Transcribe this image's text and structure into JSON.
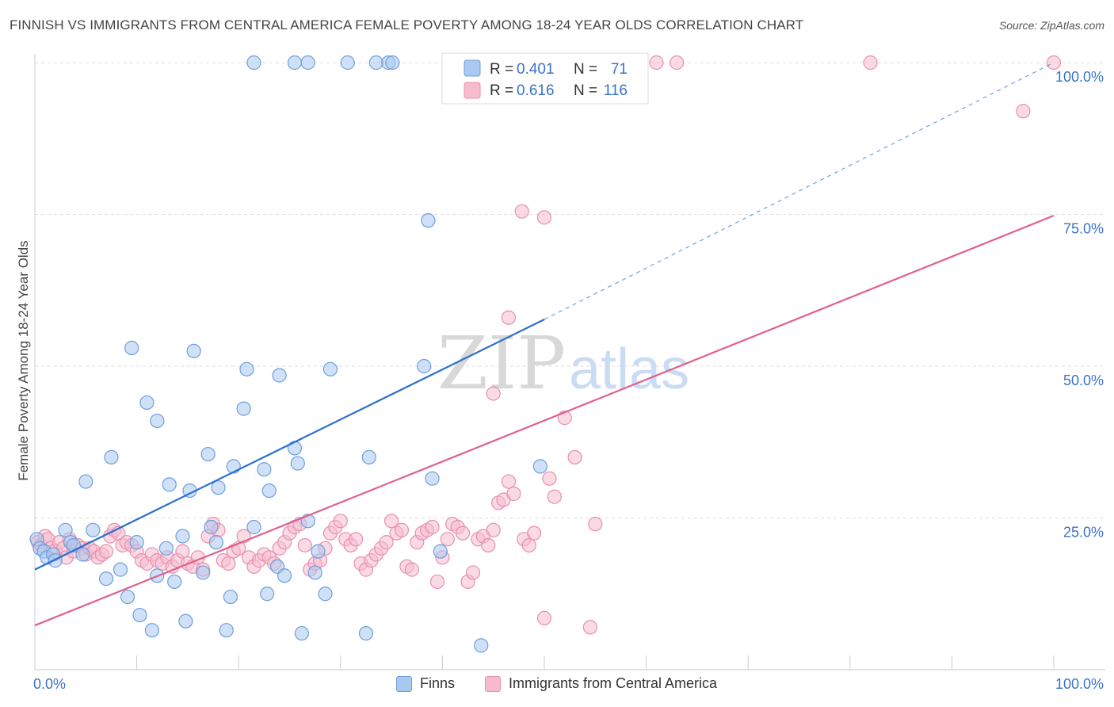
{
  "title": "FINNISH VS IMMIGRANTS FROM CENTRAL AMERICA FEMALE POVERTY AMONG 18-24 YEAR OLDS CORRELATION CHART",
  "source": "Source: ZipAtlas.com",
  "watermark": {
    "zip": "ZIP",
    "atlas": "atlas"
  },
  "legend_top": {
    "r_label": "R =",
    "n_label": "N =",
    "rows": [
      {
        "r": "0.401",
        "n": "71"
      },
      {
        "r": "0.616",
        "n": "116"
      }
    ]
  },
  "colors": {
    "finns_fill": "#a9c9f0",
    "finns_stroke": "#6d9fdc",
    "finns_line": "#2a6fcf",
    "cam_fill": "#f6bccd",
    "cam_stroke": "#e890ac",
    "cam_line": "#e0608c",
    "value_text": "#3a72c8",
    "grid": "#dddddd",
    "axis": "#cccccc"
  },
  "chart_data": {
    "type": "scatter",
    "title": "FINNISH VS IMMIGRANTS FROM CENTRAL AMERICA FEMALE POVERTY AMONG 18-24 YEAR OLDS CORRELATION CHART",
    "xlabel": "",
    "ylabel": "Female Poverty Among 18-24 Year Olds",
    "xlim": [
      0,
      100
    ],
    "ylim": [
      0,
      100
    ],
    "x_tick_labels": [
      "0.0%",
      "100.0%"
    ],
    "y_ticks": [
      25,
      50,
      75,
      100
    ],
    "y_tick_labels": [
      "25.0%",
      "50.0%",
      "75.0%",
      "100.0%"
    ],
    "grid": true,
    "legend_position": "top-center",
    "series": [
      {
        "name": "Finns",
        "r": 0.401,
        "n": 71,
        "trend": {
          "x0": 0,
          "y0": 16.5,
          "x1": 50,
          "y1": 57.7,
          "dashed_to_x": 100,
          "dashed_to_y": 100
        },
        "points": [
          [
            0.2,
            21.5
          ],
          [
            0.5,
            20.0
          ],
          [
            0.9,
            19.5
          ],
          [
            1.2,
            18.5
          ],
          [
            1.8,
            19.0
          ],
          [
            2.0,
            18.0
          ],
          [
            3.0,
            23.0
          ],
          [
            3.5,
            21.0
          ],
          [
            3.8,
            20.5
          ],
          [
            4.7,
            19.0
          ],
          [
            5.0,
            31.0
          ],
          [
            5.7,
            23.0
          ],
          [
            7.0,
            15.0
          ],
          [
            7.5,
            35.0
          ],
          [
            8.4,
            16.5
          ],
          [
            9.1,
            12.0
          ],
          [
            9.5,
            53.0
          ],
          [
            10.0,
            21.0
          ],
          [
            10.3,
            9.0
          ],
          [
            11.0,
            44.0
          ],
          [
            11.5,
            6.5
          ],
          [
            12.0,
            41.0
          ],
          [
            12.0,
            15.5
          ],
          [
            12.9,
            20.0
          ],
          [
            13.2,
            30.5
          ],
          [
            13.7,
            14.5
          ],
          [
            14.5,
            22.0
          ],
          [
            14.8,
            8.0
          ],
          [
            15.2,
            29.5
          ],
          [
            15.6,
            52.5
          ],
          [
            16.5,
            16.0
          ],
          [
            17.0,
            35.5
          ],
          [
            17.3,
            23.5
          ],
          [
            17.8,
            21.0
          ],
          [
            18.0,
            30.0
          ],
          [
            18.8,
            6.5
          ],
          [
            19.2,
            12.0
          ],
          [
            19.5,
            33.5
          ],
          [
            20.5,
            43.0
          ],
          [
            20.8,
            49.5
          ],
          [
            21.5,
            23.5
          ],
          [
            22.5,
            33.0
          ],
          [
            22.8,
            12.5
          ],
          [
            23.0,
            29.5
          ],
          [
            23.8,
            17.0
          ],
          [
            24.0,
            48.5
          ],
          [
            24.5,
            15.5
          ],
          [
            25.5,
            36.5
          ],
          [
            25.8,
            34.0
          ],
          [
            26.2,
            6.0
          ],
          [
            26.8,
            24.5
          ],
          [
            27.5,
            16.0
          ],
          [
            27.8,
            19.5
          ],
          [
            28.5,
            12.5
          ],
          [
            29.0,
            49.5
          ],
          [
            32.5,
            6.0
          ],
          [
            32.8,
            35.0
          ],
          [
            33.5,
            100
          ],
          [
            34.7,
            100
          ],
          [
            35.1,
            100
          ],
          [
            38.2,
            50.0
          ],
          [
            38.6,
            74.0
          ],
          [
            39.0,
            31.5
          ],
          [
            39.8,
            19.5
          ],
          [
            43.8,
            4.0
          ],
          [
            25.5,
            100
          ],
          [
            26.8,
            100
          ],
          [
            21.5,
            100
          ],
          [
            30.7,
            100
          ],
          [
            47.1,
            100
          ],
          [
            49.6,
            33.5
          ]
        ]
      },
      {
        "name": "Immigrants from Central America",
        "r": 0.616,
        "n": 116,
        "trend": {
          "x0": 0,
          "y0": 7.3,
          "x1": 100,
          "y1": 74.8
        },
        "points": [
          [
            0.3,
            21.0
          ],
          [
            0.6,
            20.5
          ],
          [
            1.0,
            22.0
          ],
          [
            1.3,
            21.5
          ],
          [
            1.6,
            20.0
          ],
          [
            2.0,
            19.5
          ],
          [
            2.4,
            21.0
          ],
          [
            2.8,
            20.0
          ],
          [
            3.1,
            18.5
          ],
          [
            3.4,
            21.5
          ],
          [
            3.8,
            19.5
          ],
          [
            4.2,
            20.5
          ],
          [
            4.7,
            20.0
          ],
          [
            5.0,
            19.0
          ],
          [
            5.4,
            20.0
          ],
          [
            5.8,
            19.5
          ],
          [
            6.2,
            18.5
          ],
          [
            6.6,
            19.0
          ],
          [
            7.0,
            19.5
          ],
          [
            7.4,
            22.0
          ],
          [
            7.8,
            23.0
          ],
          [
            8.2,
            22.5
          ],
          [
            8.6,
            20.5
          ],
          [
            9.0,
            21.0
          ],
          [
            9.5,
            20.5
          ],
          [
            10.0,
            19.5
          ],
          [
            10.5,
            18.0
          ],
          [
            11.0,
            17.5
          ],
          [
            11.5,
            19.0
          ],
          [
            12.0,
            18.0
          ],
          [
            12.5,
            17.5
          ],
          [
            13.0,
            18.5
          ],
          [
            13.5,
            17.0
          ],
          [
            14.0,
            18.0
          ],
          [
            14.5,
            19.5
          ],
          [
            15.0,
            17.5
          ],
          [
            15.5,
            17.0
          ],
          [
            16.0,
            18.5
          ],
          [
            16.5,
            16.5
          ],
          [
            17.0,
            22.0
          ],
          [
            17.5,
            24.0
          ],
          [
            18.0,
            23.0
          ],
          [
            18.5,
            18.0
          ],
          [
            19.0,
            17.5
          ],
          [
            19.5,
            19.5
          ],
          [
            20.0,
            20.0
          ],
          [
            20.5,
            22.0
          ],
          [
            21.0,
            18.5
          ],
          [
            21.5,
            17.0
          ],
          [
            22.0,
            18.0
          ],
          [
            22.5,
            19.0
          ],
          [
            23.0,
            18.5
          ],
          [
            23.5,
            17.5
          ],
          [
            24.0,
            20.0
          ],
          [
            24.5,
            21.0
          ],
          [
            25.0,
            22.5
          ],
          [
            25.5,
            23.5
          ],
          [
            26.0,
            24.0
          ],
          [
            26.5,
            20.5
          ],
          [
            27.0,
            16.5
          ],
          [
            27.5,
            17.5
          ],
          [
            28.0,
            18.0
          ],
          [
            28.5,
            20.0
          ],
          [
            29.0,
            22.5
          ],
          [
            29.5,
            23.5
          ],
          [
            30.0,
            24.5
          ],
          [
            30.5,
            21.5
          ],
          [
            31.0,
            20.5
          ],
          [
            31.5,
            21.5
          ],
          [
            32.0,
            17.5
          ],
          [
            32.5,
            16.5
          ],
          [
            33.0,
            18.0
          ],
          [
            33.5,
            19.0
          ],
          [
            34.0,
            20.0
          ],
          [
            34.5,
            21.0
          ],
          [
            35.0,
            24.5
          ],
          [
            35.5,
            22.5
          ],
          [
            36.0,
            23.0
          ],
          [
            36.5,
            17.0
          ],
          [
            37.0,
            16.5
          ],
          [
            37.5,
            21.0
          ],
          [
            38.0,
            22.5
          ],
          [
            38.5,
            23.0
          ],
          [
            39.0,
            23.5
          ],
          [
            39.5,
            14.5
          ],
          [
            40.0,
            18.5
          ],
          [
            40.5,
            21.5
          ],
          [
            41.0,
            24.0
          ],
          [
            41.5,
            23.5
          ],
          [
            42.0,
            22.5
          ],
          [
            42.5,
            14.5
          ],
          [
            43.0,
            16.0
          ],
          [
            43.5,
            21.5
          ],
          [
            44.0,
            22.0
          ],
          [
            44.5,
            20.5
          ],
          [
            45.0,
            23.0
          ],
          [
            45.5,
            27.5
          ],
          [
            46.0,
            28.0
          ],
          [
            46.5,
            31.0
          ],
          [
            47.0,
            29.0
          ],
          [
            48.0,
            21.5
          ],
          [
            48.5,
            20.5
          ],
          [
            49.0,
            22.5
          ],
          [
            50.0,
            8.5
          ],
          [
            50.5,
            31.5
          ],
          [
            51.0,
            28.5
          ],
          [
            52.0,
            41.5
          ],
          [
            53.0,
            35.0
          ],
          [
            54.5,
            7.0
          ],
          [
            55.0,
            24.0
          ],
          [
            45.0,
            45.5
          ],
          [
            46.5,
            58.0
          ],
          [
            47.8,
            75.5
          ],
          [
            50.0,
            74.5
          ],
          [
            97.0,
            92.0
          ],
          [
            100,
            100
          ],
          [
            82.0,
            100
          ],
          [
            63.0,
            100
          ],
          [
            61.0,
            100
          ],
          [
            58.0,
            100
          ]
        ]
      }
    ]
  },
  "bottom_legend": [
    "Finns",
    "Immigrants from Central America"
  ]
}
